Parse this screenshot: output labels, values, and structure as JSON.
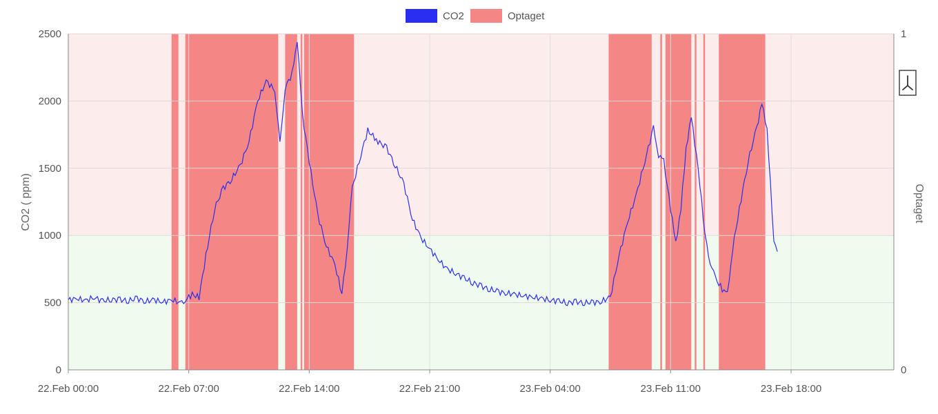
{
  "chart_data": {
    "type": "line",
    "legend": {
      "position": "top-center",
      "entries": [
        {
          "label": "CO2",
          "color": "#2a2ef0"
        },
        {
          "label": "Optaget",
          "color": "#f48686"
        }
      ]
    },
    "xaxis": {
      "unit": "hours since 22.Feb 00:00",
      "range": [
        0,
        41
      ],
      "ticks": [
        {
          "x": 0,
          "label": "22.Feb 00:00"
        },
        {
          "x": 7,
          "label": "22.Feb 07:00"
        },
        {
          "x": 14,
          "label": "22.Feb 14:00"
        },
        {
          "x": 21,
          "label": "22.Feb 21:00"
        },
        {
          "x": 28,
          "label": "23.Feb 04:00"
        },
        {
          "x": 35,
          "label": "23.Feb 11:00"
        },
        {
          "x": 42,
          "label": "23.Feb 18:00"
        }
      ]
    },
    "yaxis_left": {
      "label": "CO2 ( ppm)",
      "range": [
        0,
        2500
      ],
      "ticks": [
        0,
        500,
        1000,
        1500,
        2000,
        2500
      ]
    },
    "yaxis_right": {
      "label": "Optaget",
      "range": [
        0,
        1
      ],
      "ticks": [
        0,
        1
      ]
    },
    "thresholds": [
      {
        "from": 0,
        "to": 1000,
        "color": "#f0fbf0"
      },
      {
        "from": 1000,
        "to": 2500,
        "color": "#fdecec"
      }
    ],
    "grid": true,
    "series": [
      {
        "name": "CO2",
        "color": "#2a2ef0",
        "points": [
          [
            0,
            520
          ],
          [
            0.5,
            530
          ],
          [
            1,
            515
          ],
          [
            1.5,
            540
          ],
          [
            2,
            510
          ],
          [
            2.5,
            525
          ],
          [
            3,
            520
          ],
          [
            3.5,
            515
          ],
          [
            4,
            530
          ],
          [
            4.5,
            510
          ],
          [
            5,
            520
          ],
          [
            5.5,
            505
          ],
          [
            6,
            520
          ],
          [
            6.5,
            500
          ],
          [
            6.8,
            520
          ],
          [
            7.2,
            560
          ],
          [
            7.6,
            540
          ],
          [
            8,
            850
          ],
          [
            8.5,
            1200
          ],
          [
            9,
            1350
          ],
          [
            9.5,
            1420
          ],
          [
            10,
            1520
          ],
          [
            10.5,
            1700
          ],
          [
            11,
            2000
          ],
          [
            11.5,
            2150
          ],
          [
            12,
            2080
          ],
          [
            12.3,
            1680
          ],
          [
            12.6,
            2100
          ],
          [
            13,
            2200
          ],
          [
            13.3,
            2460
          ],
          [
            13.6,
            1900
          ],
          [
            14,
            1550
          ],
          [
            14.5,
            1150
          ],
          [
            15,
            920
          ],
          [
            15.5,
            780
          ],
          [
            15.9,
            560
          ],
          [
            16.2,
            900
          ],
          [
            16.5,
            1350
          ],
          [
            17,
            1600
          ],
          [
            17.4,
            1780
          ],
          [
            18,
            1700
          ],
          [
            18.5,
            1650
          ],
          [
            19,
            1520
          ],
          [
            19.5,
            1380
          ],
          [
            20,
            1120
          ],
          [
            20.5,
            980
          ],
          [
            21,
            900
          ],
          [
            21.5,
            820
          ],
          [
            22,
            750
          ],
          [
            22.5,
            720
          ],
          [
            23,
            680
          ],
          [
            23.5,
            650
          ],
          [
            24,
            620
          ],
          [
            24.5,
            600
          ],
          [
            25,
            580
          ],
          [
            25.5,
            570
          ],
          [
            26,
            560
          ],
          [
            26.5,
            550
          ],
          [
            27,
            540
          ],
          [
            27.5,
            530
          ],
          [
            28,
            520
          ],
          [
            28.5,
            510
          ],
          [
            29,
            500
          ],
          [
            29.5,
            505
          ],
          [
            30,
            500
          ],
          [
            30.5,
            500
          ],
          [
            31,
            510
          ],
          [
            31.5,
            540
          ],
          [
            32,
            850
          ],
          [
            32.5,
            1100
          ],
          [
            33,
            1300
          ],
          [
            33.5,
            1550
          ],
          [
            34,
            1800
          ],
          [
            34.3,
            1600
          ],
          [
            34.6,
            1550
          ],
          [
            35,
            1200
          ],
          [
            35.3,
            940
          ],
          [
            35.6,
            1200
          ],
          [
            35.9,
            1650
          ],
          [
            36.2,
            1880
          ],
          [
            36.6,
            1500
          ],
          [
            37,
            1000
          ],
          [
            37.3,
            800
          ],
          [
            37.6,
            680
          ],
          [
            38,
            600
          ],
          [
            38.3,
            560
          ],
          [
            38.6,
            900
          ],
          [
            39,
            1200
          ],
          [
            39.5,
            1550
          ],
          [
            40,
            1800
          ],
          [
            40.3,
            1980
          ],
          [
            40.6,
            1800
          ],
          [
            41,
            950
          ],
          [
            41.2,
            880
          ]
        ]
      }
    ],
    "occupied_intervals": [
      [
        6.0,
        6.4
      ],
      [
        6.8,
        12.2
      ],
      [
        12.6,
        13.3
      ],
      [
        13.5,
        13.6
      ],
      [
        13.7,
        16.6
      ],
      [
        31.4,
        33.9
      ],
      [
        34.4,
        34.5
      ],
      [
        34.7,
        36.2
      ],
      [
        36.4,
        36.5
      ],
      [
        36.9,
        37.0
      ],
      [
        37.8,
        40.5
      ]
    ],
    "pdf_icon": "pdf-icon"
  }
}
